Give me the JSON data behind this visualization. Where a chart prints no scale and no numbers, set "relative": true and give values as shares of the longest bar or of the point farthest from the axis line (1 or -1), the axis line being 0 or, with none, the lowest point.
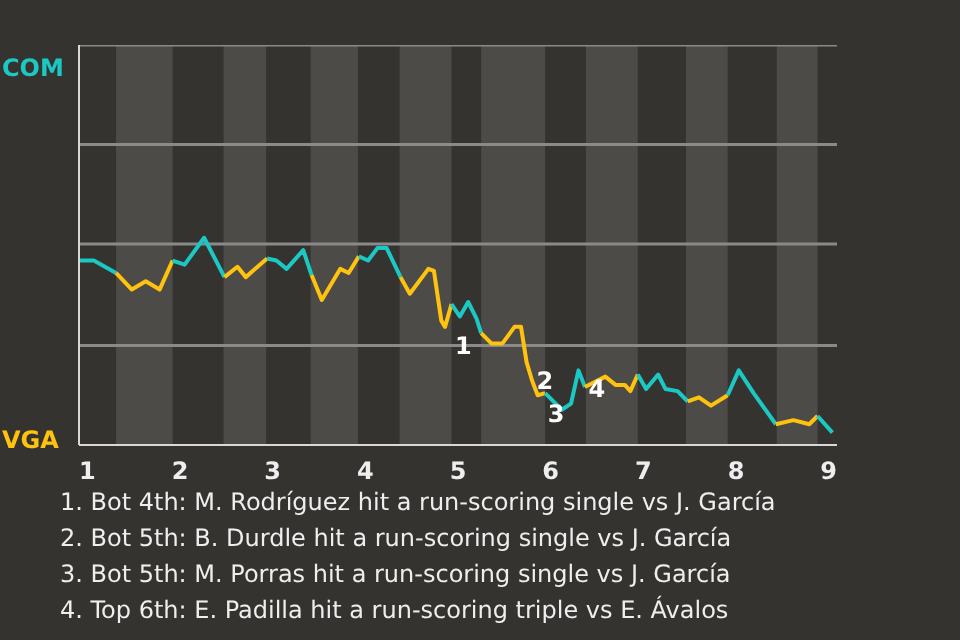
{
  "chart_data": {
    "type": "line",
    "relative": true,
    "series": [
      {
        "color": "#1cc8c4",
        "x": [
          0.91,
          1.07,
          1.31
        ],
        "values": [
          0.89,
          0.89,
          0.83
        ]
      },
      {
        "color": "#ffc20e",
        "x": [
          1.31,
          1.48,
          1.63,
          1.78,
          1.92
        ],
        "values": [
          0.83,
          0.75,
          0.79,
          0.75,
          0.89
        ]
      },
      {
        "color": "#1cc8c4",
        "x": [
          1.92,
          2.05,
          2.26,
          2.48
        ],
        "values": [
          0.89,
          0.87,
          1,
          0.81
        ]
      },
      {
        "color": "#ffc20e",
        "x": [
          2.48,
          2.62,
          2.71,
          2.94
        ],
        "values": [
          0.81,
          0.86,
          0.81,
          0.9
        ]
      },
      {
        "color": "#1cc8c4",
        "x": [
          2.94,
          3.04,
          3.15,
          3.33,
          3.42
        ],
        "values": [
          0.9,
          0.89,
          0.85,
          0.94,
          0.82
        ]
      },
      {
        "color": "#ffc20e",
        "x": [
          3.42,
          3.53,
          3.73,
          3.82,
          3.93
        ],
        "values": [
          0.82,
          0.7,
          0.85,
          0.83,
          0.91
        ]
      },
      {
        "color": "#1cc8c4",
        "x": [
          3.93,
          4.03,
          4.13,
          4.23,
          4.38
        ],
        "values": [
          0.91,
          0.89,
          0.95,
          0.95,
          0.81
        ]
      },
      {
        "color": "#ffc20e",
        "x": [
          4.38,
          4.48,
          4.68,
          4.74,
          4.82,
          4.86,
          4.93
        ],
        "values": [
          0.81,
          0.73,
          0.85,
          0.84,
          0.6,
          0.57,
          0.68
        ]
      },
      {
        "color": "#1cc8c4",
        "x": [
          4.93,
          5.02,
          5.11,
          5.2,
          5.25
        ],
        "values": [
          0.68,
          0.62,
          0.69,
          0.61,
          0.54
        ]
      },
      {
        "color": "#ffc20e",
        "x": [
          5.25,
          5.36,
          5.48,
          5.61,
          5.68,
          5.74,
          5.8,
          5.86,
          5.94
        ],
        "values": [
          0.54,
          0.49,
          0.49,
          0.57,
          0.57,
          0.4,
          0.31,
          0.24,
          0.25
        ]
      },
      {
        "color": "#1cc8c4",
        "x": [
          5.94,
          6.12,
          6.22,
          6.3,
          6.37
        ],
        "values": [
          0.25,
          0.17,
          0.2,
          0.36,
          0.28
        ]
      },
      {
        "color": "#ffc20e",
        "x": [
          6.37,
          6.59,
          6.7,
          6.8,
          6.86,
          6.94
        ],
        "values": [
          0.28,
          0.33,
          0.29,
          0.29,
          0.26,
          0.34
        ]
      },
      {
        "color": "#1cc8c4",
        "x": [
          6.94,
          7.03,
          7.16,
          7.24,
          7.37,
          7.48
        ],
        "values": [
          0.34,
          0.27,
          0.34,
          0.27,
          0.26,
          0.21
        ]
      },
      {
        "color": "#ffc20e",
        "x": [
          7.48,
          7.6,
          7.73,
          7.91
        ],
        "values": [
          0.21,
          0.23,
          0.19,
          0.24
        ]
      },
      {
        "color": "#1cc8c4",
        "x": [
          7.91,
          8.03,
          8.19,
          8.43
        ],
        "values": [
          0.24,
          0.36,
          0.25,
          0.1
        ]
      },
      {
        "color": "#ffc20e",
        "x": [
          8.43,
          8.62,
          8.79,
          8.88
        ],
        "values": [
          0.1,
          0.12,
          0.1,
          0.14
        ]
      },
      {
        "color": "#1cc8c4",
        "x": [
          8.88,
          9.04
        ],
        "values": [
          0.14,
          0.06
        ]
      }
    ],
    "xlim": [
      0.91,
      9.09
    ],
    "xticks": [
      1,
      2,
      3,
      4,
      5,
      6,
      7,
      8,
      9
    ],
    "marker": "none",
    "line_style": "solid",
    "ref_lines": [
      {
        "axis": "y",
        "value": 0.48,
        "color": "#8a8a8a"
      },
      {
        "axis": "y",
        "value": 0.97,
        "color": "#8a8a8a"
      },
      {
        "axis": "y",
        "value": 1.45,
        "color": "#8a8a8a"
      },
      {
        "axis": "y",
        "value": 1.93,
        "color": "#8a8a8a"
      }
    ],
    "bands": [
      {
        "axis": "x",
        "from": 1.31,
        "to": 1.92,
        "color": "#4d4b48"
      },
      {
        "axis": "x",
        "from": 2.47,
        "to": 2.93,
        "color": "#4d4b48"
      },
      {
        "axis": "x",
        "from": 3.41,
        "to": 3.92,
        "color": "#4d4b48"
      },
      {
        "axis": "x",
        "from": 4.37,
        "to": 4.93,
        "color": "#4d4b48"
      },
      {
        "axis": "x",
        "from": 5.25,
        "to": 5.94,
        "color": "#4d4b48"
      },
      {
        "axis": "x",
        "from": 6.38,
        "to": 6.94,
        "color": "#4d4b48"
      },
      {
        "axis": "x",
        "from": 7.46,
        "to": 7.91,
        "color": "#4d4b48"
      },
      {
        "axis": "x",
        "from": 8.44,
        "to": 8.88,
        "color": "#4d4b48"
      }
    ],
    "annotations": [
      "COM",
      "VGA",
      {
        "text": "1",
        "x": 4.86,
        "y": 0.57
      },
      {
        "text": "2",
        "x": 5.74,
        "y": 0.4
      },
      {
        "text": "3",
        "x": 5.86,
        "y": 0.24
      },
      {
        "text": "4",
        "x": 6.3,
        "y": 0.36
      },
      "1. Bot 4th: M. Rodríguez hit a run-scoring single vs J. García",
      "2. Bot 5th: B. Durdle hit a run-scoring single vs J. García",
      "3. Bot 5th: M. Porras hit a run-scoring single vs J. García",
      "4. Top 6th: E. Padilla hit a run-scoring triple vs E. Ávalos"
    ]
  }
}
